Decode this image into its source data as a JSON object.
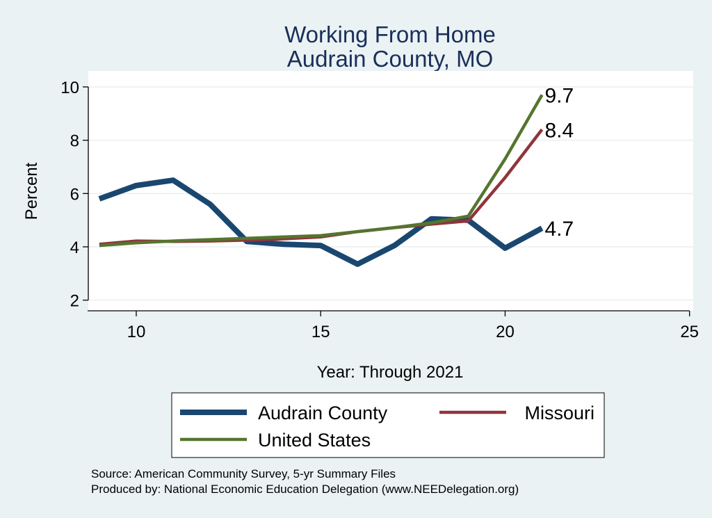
{
  "chart_data": {
    "type": "line",
    "title": [
      "Working From Home",
      "Audrain County, MO"
    ],
    "xlabel": "Year: Through 2021",
    "ylabel": "Percent",
    "xlim": [
      8.7,
      25.1
    ],
    "ylim": [
      1.6,
      10.6
    ],
    "xticks": [
      10,
      15,
      20,
      25
    ],
    "yticks": [
      2,
      4,
      6,
      8,
      10
    ],
    "grid": true,
    "legend_position": "bottom",
    "x": [
      9,
      10,
      11,
      12,
      13,
      14,
      15,
      16,
      17,
      18,
      19,
      20,
      21
    ],
    "series": [
      {
        "name": "Audrain County",
        "color": "#1a476f",
        "values": [
          5.8,
          6.3,
          6.5,
          5.6,
          4.2,
          4.1,
          4.05,
          3.35,
          4.05,
          5.05,
          5.0,
          3.95,
          4.7
        ],
        "end_label": "4.7"
      },
      {
        "name": "Missouri",
        "color": "#90353b",
        "values": [
          4.1,
          4.22,
          4.2,
          4.22,
          4.25,
          4.3,
          4.37,
          4.57,
          4.72,
          4.85,
          4.97,
          6.6,
          8.4
        ],
        "end_label": "8.4"
      },
      {
        "name": "United States",
        "color": "#55752f",
        "values": [
          4.05,
          4.15,
          4.22,
          4.27,
          4.32,
          4.37,
          4.42,
          4.57,
          4.72,
          4.9,
          5.15,
          7.3,
          9.7
        ],
        "end_label": "9.7"
      }
    ],
    "notes": [
      "Source: American Community Survey, 5-yr Summary Files",
      "Produced by: National Economic Education Delegation (www.NEEDelegation.org)"
    ]
  }
}
